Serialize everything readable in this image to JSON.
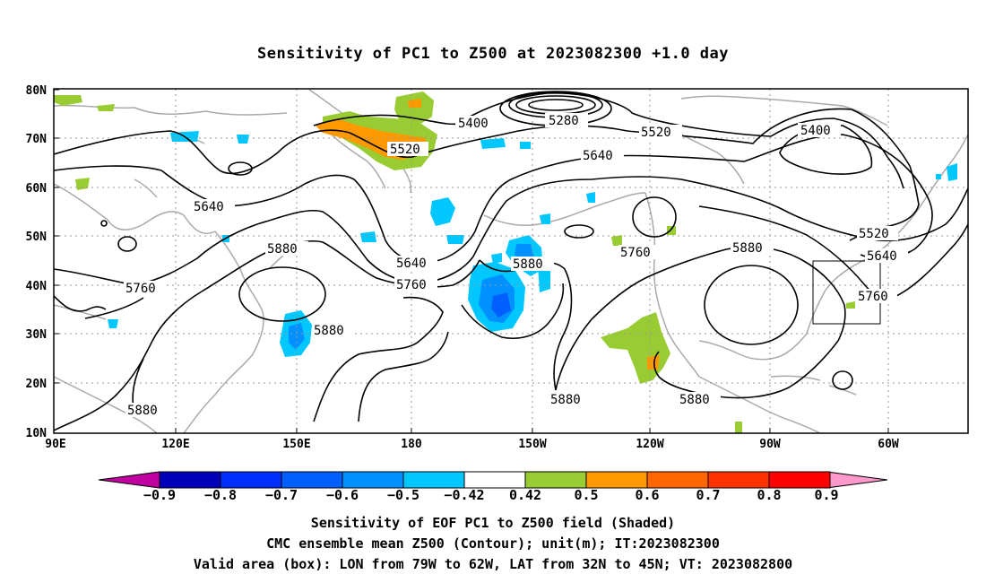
{
  "title": "Sensitivity of PC1 to Z500 at 2023082300 +1.0 day",
  "axes": {
    "lat_labels": [
      "80N",
      "70N",
      "60N",
      "50N",
      "40N",
      "30N",
      "20N",
      "10N"
    ],
    "lon_labels": [
      "90E",
      "120E",
      "150E",
      "180",
      "150W",
      "120W",
      "90W",
      "60W"
    ]
  },
  "contour_labels": {
    "c5280": "5280",
    "c5400a": "5400",
    "c5400b": "5400",
    "c5520a": "5520",
    "c5520b": "5520",
    "c5520c": "5520",
    "c5640a": "5640",
    "c5640b": "5640",
    "c5640c": "5640",
    "c5640d": "5640",
    "c5760a": "5760",
    "c5760b": "5760",
    "c5760c": "5760",
    "c5760d": "5760",
    "c5880a": "5880",
    "c5880b": "5880",
    "c5880c": "5880",
    "c5880d": "5880",
    "c5880e": "5880",
    "c5880f": "5880",
    "c5880g": "5880"
  },
  "colorbar": {
    "labels": [
      "−0.9",
      "−0.8",
      "−0.7",
      "−0.6",
      "−0.5",
      "−0.42",
      "0.42",
      "0.5",
      "0.6",
      "0.7",
      "0.8",
      "0.9"
    ],
    "colors": [
      "#0000b8",
      "#0030ff",
      "#0060ff",
      "#0090ff",
      "#00c8ff",
      "#ffffff",
      "#99cc33",
      "#ff9900",
      "#ff6600",
      "#ff3300",
      "#ff0000"
    ],
    "left_tip_color": "#c000a0",
    "right_tip_color": "#ff99cc"
  },
  "captions": {
    "line1": "Sensitivity of EOF PC1 to Z500 field (Shaded)",
    "line2": "CMC ensemble mean Z500 (Contour); unit(m); IT:2023082300",
    "line3": "Valid area (box): LON from 79W to 62W, LAT from 32N to 45N; VT: 2023082800"
  }
}
